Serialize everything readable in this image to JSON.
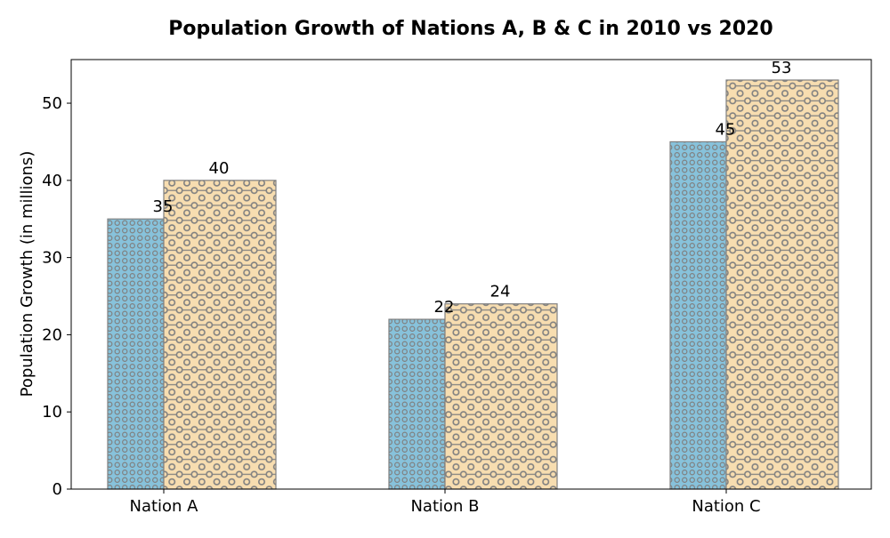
{
  "chart_data": {
    "type": "bar",
    "title": "Population Growth of Nations A, B & C in 2010 vs 2020",
    "xlabel": "",
    "ylabel": "Population Growth (in millions)",
    "categories": [
      "Nation A",
      "Nation B",
      "Nation C"
    ],
    "series": [
      {
        "values": [
          35,
          22,
          45
        ],
        "color": "#87c2db",
        "pattern": "dense-circles"
      },
      {
        "values": [
          40,
          24,
          53
        ],
        "color": "#f7ddb0",
        "pattern": "circles-and-lines"
      }
    ],
    "ylim": [
      0,
      55.65
    ],
    "yticks": [
      0,
      10,
      20,
      30,
      40,
      50
    ],
    "yticks_labels": [
      "0",
      "10",
      "20",
      "30",
      "40",
      "50"
    ],
    "grid": false,
    "legend": false,
    "edge_color": "#808080"
  }
}
